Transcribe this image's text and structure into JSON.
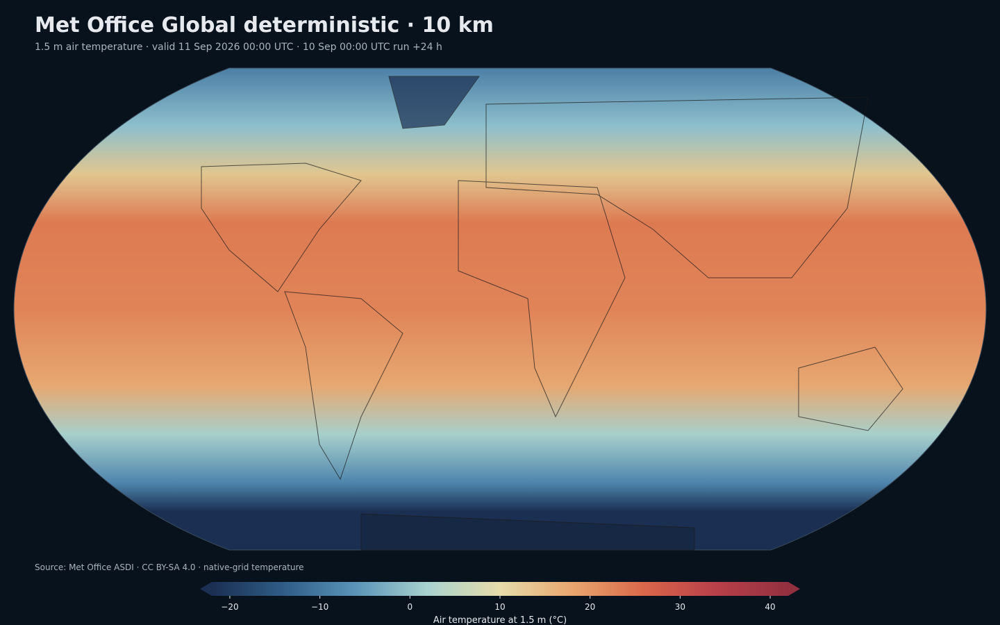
{
  "header": {
    "title": "Met Office Global deterministic · 10 km",
    "subtitle": "1.5 m air temperature · valid 11 Sep 2026 00:00 UTC · 10 Sep 00:00 UTC run +24 h"
  },
  "source": "Source: Met Office ASDI · CC BY-SA 4.0 · native-grid temperature",
  "colorbar": {
    "label": "Air temperature at 1.5 m (°C)",
    "lim": [
      -22,
      42
    ],
    "ticks": [
      {
        "value": -20,
        "label": "−20"
      },
      {
        "value": -10,
        "label": "−10"
      },
      0,
      10,
      20,
      30,
      40
    ],
    "colors": [
      "#1b2f52",
      "#2f5d87",
      "#5a94b8",
      "#a9d2cf",
      "#e6dcaa",
      "#e8a66e",
      "#d9674a",
      "#b8404a",
      "#93303f"
    ]
  }
}
